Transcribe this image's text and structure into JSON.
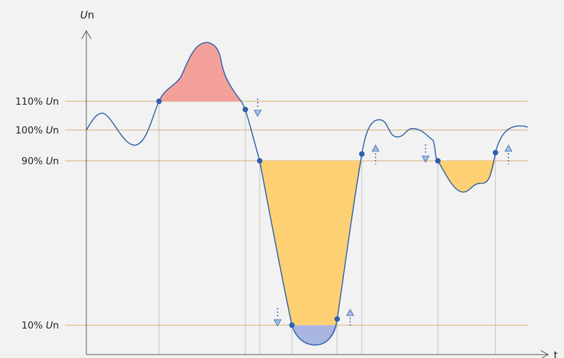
{
  "y_axis": {
    "symbol": "U",
    "suffix": "n"
  },
  "x_axis": {
    "label": "t"
  },
  "threshold_levels": [
    {
      "value": "110% ",
      "unit_symbol": "U",
      "unit_suffix": "n"
    },
    {
      "value": "100% ",
      "unit_symbol": "U",
      "unit_suffix": "n"
    },
    {
      "value": "90% ",
      "unit_symbol": "U",
      "unit_suffix": "n"
    },
    {
      "value": "10% ",
      "unit_symbol": "U",
      "unit_suffix": "n"
    }
  ],
  "colors": {
    "background": "#f2f2f2",
    "curve": "#2e5faa",
    "marker": "#2e5faa",
    "threshold_line": "#d9a96a",
    "guide_line": "#bdbdbd",
    "axis": "#555555",
    "overvoltage_fill": "#f4a09a",
    "dip_fill": "#fdd073",
    "interruption_fill": "#aab6e2",
    "arrow": "#a8bfe6"
  },
  "event_regions": [
    "overvoltage-swell",
    "voltage-dip",
    "interruption",
    "voltage-dip-minor"
  ],
  "arrow_icons": [
    "arrow-down-icon",
    "arrow-up-icon"
  ]
}
